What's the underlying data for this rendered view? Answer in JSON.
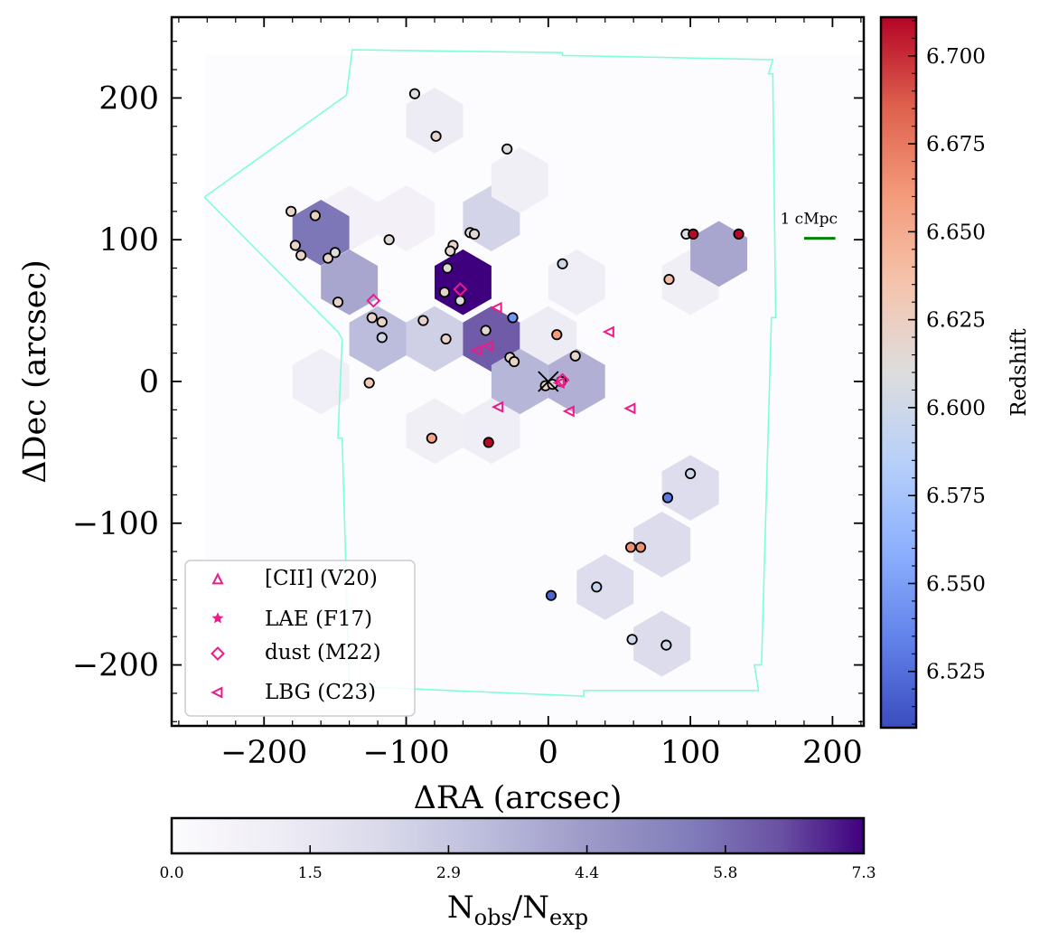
{
  "chart_data": {
    "type": "scatter",
    "xlabel": "ΔRA (arcsec)",
    "ylabel": "ΔDec (arcsec)",
    "xlim": [
      -265,
      222
    ],
    "ylim": [
      -243,
      257
    ],
    "xticks": [
      -200,
      -100,
      0,
      100,
      200
    ],
    "xtick_labels": [
      "−200",
      "−100",
      "0",
      "100",
      "200"
    ],
    "yticks": [
      -200,
      -100,
      0,
      100,
      200
    ],
    "ytick_labels": [
      "−200",
      "−100",
      "0",
      "100",
      "200"
    ],
    "grid": false,
    "legend_placement": "bottom-left",
    "legend": [
      {
        "label": "[CII] (V20)",
        "marker": "triangle-up"
      },
      {
        "label": "LAE (F17)",
        "marker": "star"
      },
      {
        "label": "dust (M22)",
        "marker": "diamond"
      },
      {
        "label": "LBG (C23)",
        "marker": "triangle-left"
      }
    ],
    "marker_color": "#ee1a8c",
    "footprint_color": "#7fffd4",
    "footprint": [
      [
        -242,
        130
      ],
      [
        -142,
        202
      ],
      [
        -138,
        234
      ],
      [
        10,
        232
      ],
      [
        10,
        230
      ],
      [
        158,
        227
      ],
      [
        158,
        227
      ],
      [
        155,
        217
      ],
      [
        158,
        217
      ],
      [
        160,
        45
      ],
      [
        157,
        45
      ],
      [
        150,
        -200
      ],
      [
        145,
        -200
      ],
      [
        148,
        -218
      ],
      [
        25,
        -218
      ],
      [
        25,
        -222
      ],
      [
        -140,
        -215
      ],
      [
        -140,
        -215
      ],
      [
        -145,
        -40
      ],
      [
        -148,
        -40
      ],
      [
        -145,
        30
      ],
      [
        -148,
        35
      ],
      [
        -242,
        130
      ]
    ],
    "scale_bar": {
      "label": "1 cMpc",
      "x": [
        180,
        202
      ],
      "y": 101,
      "color": "#008000"
    },
    "center_marker": {
      "x": 0,
      "y": 0,
      "marker": "x"
    },
    "hexbins": {
      "gridsize": {
        "dx": 40,
        "dy": 46
      },
      "vmax": 7.3,
      "colormap": "Purples",
      "cells": [
        {
          "x": -80,
          "y": 184,
          "v": 1.2
        },
        {
          "x": -100,
          "y": 115,
          "v": 0.8
        },
        {
          "x": -140,
          "y": 115,
          "v": 0.8
        },
        {
          "x": -160,
          "y": 105,
          "v": 5.6
        },
        {
          "x": -40,
          "y": 115,
          "v": 2.4
        },
        {
          "x": -20,
          "y": 142,
          "v": 0.9
        },
        {
          "x": 20,
          "y": 70,
          "v": 1.1
        },
        {
          "x": 100,
          "y": 70,
          "v": 0.9
        },
        {
          "x": 120,
          "y": 90,
          "v": 4.0
        },
        {
          "x": -140,
          "y": 70,
          "v": 4.0
        },
        {
          "x": -60,
          "y": 70,
          "v": 7.3
        },
        {
          "x": -120,
          "y": 30,
          "v": 3.3
        },
        {
          "x": -80,
          "y": 30,
          "v": 2.6
        },
        {
          "x": -40,
          "y": 30,
          "v": 6.2
        },
        {
          "x": 0,
          "y": 30,
          "v": 1.2
        },
        {
          "x": -160,
          "y": 0,
          "v": 1.0
        },
        {
          "x": -20,
          "y": 0,
          "v": 3.5
        },
        {
          "x": 20,
          "y": 0,
          "v": 3.7
        },
        {
          "x": -80,
          "y": -35,
          "v": 0.9
        },
        {
          "x": -40,
          "y": -35,
          "v": 1.1
        },
        {
          "x": 100,
          "y": -75,
          "v": 2.0
        },
        {
          "x": 80,
          "y": -115,
          "v": 2.1
        },
        {
          "x": 40,
          "y": -145,
          "v": 2.0
        },
        {
          "x": 80,
          "y": -185,
          "v": 2.1
        }
      ]
    },
    "galaxies": [
      {
        "x": -94,
        "y": 203,
        "z": 6.61
      },
      {
        "x": -79,
        "y": 173,
        "z": 6.62
      },
      {
        "x": -29,
        "y": 164,
        "z": 6.61
      },
      {
        "x": -181,
        "y": 120,
        "z": 6.62
      },
      {
        "x": -164,
        "y": 117,
        "z": 6.625
      },
      {
        "x": -178,
        "y": 96,
        "z": 6.62
      },
      {
        "x": -174,
        "y": 89,
        "z": 6.62
      },
      {
        "x": -155,
        "y": 87,
        "z": 6.62
      },
      {
        "x": -150,
        "y": 91,
        "z": 6.61
      },
      {
        "x": -112,
        "y": 100,
        "z": 6.615
      },
      {
        "x": -55,
        "y": 105,
        "z": 6.61
      },
      {
        "x": -52,
        "y": 104,
        "z": 6.615
      },
      {
        "x": -67,
        "y": 96,
        "z": 6.62
      },
      {
        "x": -69,
        "y": 92,
        "z": 6.615
      },
      {
        "x": -71,
        "y": 80,
        "z": 6.615
      },
      {
        "x": -73,
        "y": 63,
        "z": 6.62
      },
      {
        "x": -62,
        "y": 57,
        "z": 6.61
      },
      {
        "x": -148,
        "y": 56,
        "z": 6.62
      },
      {
        "x": 10,
        "y": 83,
        "z": 6.6
      },
      {
        "x": 85,
        "y": 72,
        "z": 6.64
      },
      {
        "x": 97,
        "y": 104,
        "z": 6.61
      },
      {
        "x": 102,
        "y": 104,
        "z": 6.71
      },
      {
        "x": 134,
        "y": 104,
        "z": 6.71
      },
      {
        "x": -124,
        "y": 45,
        "z": 6.62
      },
      {
        "x": -117,
        "y": 42,
        "z": 6.62
      },
      {
        "x": -117,
        "y": 31,
        "z": 6.6
      },
      {
        "x": -88,
        "y": 43,
        "z": 6.62
      },
      {
        "x": -72,
        "y": 30,
        "z": 6.62
      },
      {
        "x": -44,
        "y": 36,
        "z": 6.615
      },
      {
        "x": -25,
        "y": 45,
        "z": 6.545
      },
      {
        "x": 6,
        "y": 33,
        "z": 6.66
      },
      {
        "x": -27,
        "y": 17,
        "z": 6.62
      },
      {
        "x": -24,
        "y": 14,
        "z": 6.62
      },
      {
        "x": 19,
        "y": 18,
        "z": 6.62
      },
      {
        "x": -126,
        "y": -1,
        "z": 6.63
      },
      {
        "x": -2,
        "y": -3,
        "z": 6.62
      },
      {
        "x": 3,
        "y": -2,
        "z": 6.615
      },
      {
        "x": 9,
        "y": 0,
        "z": 6.62
      },
      {
        "x": -82,
        "y": -40,
        "z": 6.655
      },
      {
        "x": -42,
        "y": -43,
        "z": 6.71
      },
      {
        "x": 100,
        "y": -65,
        "z": 6.6
      },
      {
        "x": 84,
        "y": -82,
        "z": 6.53
      },
      {
        "x": 58,
        "y": -117,
        "z": 6.665
      },
      {
        "x": 65,
        "y": -117,
        "z": 6.665
      },
      {
        "x": 2,
        "y": -151,
        "z": 6.52
      },
      {
        "x": 34,
        "y": -145,
        "z": 6.595
      },
      {
        "x": 59,
        "y": -182,
        "z": 6.6
      },
      {
        "x": 83,
        "y": -186,
        "z": 6.6
      }
    ],
    "dust_sources": [
      {
        "x": -123,
        "y": 57
      },
      {
        "x": -62,
        "y": 65
      },
      {
        "x": 10,
        "y": 1
      }
    ],
    "lbg_sources": [
      {
        "x": -36,
        "y": 52
      },
      {
        "x": -50,
        "y": 22
      },
      {
        "x": -42,
        "y": 25
      },
      {
        "x": -35,
        "y": -18
      },
      {
        "x": 15,
        "y": -21
      },
      {
        "x": 43,
        "y": 35
      },
      {
        "x": 58,
        "y": -19
      },
      {
        "x": 8,
        "y": -1
      }
    ],
    "colorbar_redshift": {
      "label": "Redshift",
      "range": [
        6.509,
        6.711
      ],
      "ticks": [
        6.525,
        6.55,
        6.575,
        6.6,
        6.625,
        6.65,
        6.675,
        6.7
      ],
      "tick_labels": [
        "6.525",
        "6.550",
        "6.575",
        "6.600",
        "6.625",
        "6.650",
        "6.675",
        "6.700"
      ],
      "colormap": "coolwarm"
    },
    "colorbar_density": {
      "label_main": "N",
      "label_sub1": "obs",
      "label_slash": "/N",
      "label_sub2": "exp",
      "range": [
        0,
        7.3
      ],
      "ticks": [
        0.0,
        1.46,
        2.92,
        4.38,
        5.84,
        7.3
      ],
      "tick_labels": [
        "0.0",
        "1.5",
        "2.9",
        "4.4",
        "5.8",
        "7.3"
      ],
      "colormap": "Purples"
    }
  }
}
